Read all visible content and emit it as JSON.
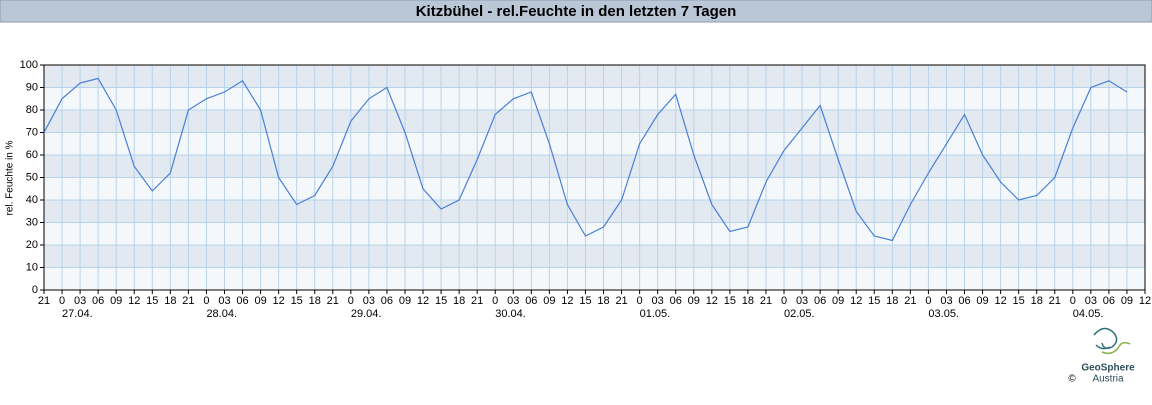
{
  "chart_data": {
    "type": "line",
    "title": "Kitzbühel - rel.Feuchte in den letzten 7 Tagen",
    "y_label": "rel. Feuchte in %",
    "categories": [
      "21",
      "0",
      "03",
      "06",
      "09",
      "12",
      "15",
      "18",
      "21",
      "0",
      "03",
      "06",
      "09",
      "12",
      "15",
      "18",
      "21",
      "0",
      "03",
      "06",
      "09",
      "12",
      "15",
      "18",
      "21",
      "0",
      "03",
      "06",
      "09",
      "12",
      "15",
      "18",
      "21",
      "0",
      "03",
      "06",
      "09",
      "12",
      "15",
      "18",
      "21",
      "0",
      "03",
      "06",
      "09",
      "12",
      "15",
      "18",
      "21",
      "0",
      "03",
      "06",
      "09",
      "12",
      "15",
      "18",
      "21",
      "0",
      "03",
      "06",
      "09",
      "12"
    ],
    "date_labels": [
      "27.04.",
      "28.04.",
      "29.04.",
      "30.04.",
      "01.05.",
      "02.05.",
      "03.05.",
      "04.05."
    ],
    "series": [
      {
        "name": "rel. Feuchte",
        "color": "#4a7fd6",
        "values": [
          70,
          85,
          92,
          94,
          80,
          55,
          44,
          52,
          80,
          85,
          88,
          93,
          80,
          50,
          38,
          42,
          55,
          75,
          85,
          90,
          70,
          45,
          36,
          40,
          58,
          78,
          85,
          88,
          65,
          38,
          24,
          28,
          40,
          65,
          78,
          87,
          60,
          38,
          26,
          28,
          48,
          62,
          72,
          82,
          58,
          35,
          24,
          22,
          38,
          52,
          65,
          78,
          60,
          48,
          40,
          42,
          50,
          72,
          90,
          93,
          88,
          null
        ]
      }
    ],
    "ylim": [
      0,
      100
    ],
    "yticks": [
      0,
      10,
      20,
      30,
      40,
      50,
      60,
      70,
      80,
      90,
      100
    ],
    "grid": true,
    "logo": {
      "name": "GeoSphere",
      "sub": "Austria",
      "copyright": "©"
    }
  }
}
